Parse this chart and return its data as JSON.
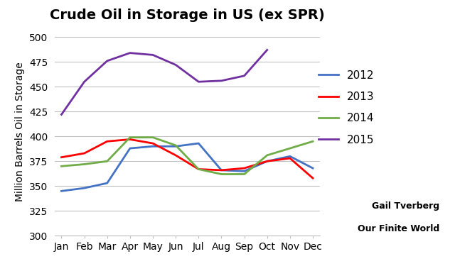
{
  "title": "Crude Oil in Storage in US (ex SPR)",
  "ylabel": "Million Barrels Oil in Storage",
  "months": [
    "Jan",
    "Feb",
    "Mar",
    "Apr",
    "May",
    "Jun",
    "Jul",
    "Aug",
    "Sep",
    "Oct",
    "Nov",
    "Dec"
  ],
  "series_order": [
    "2012",
    "2013",
    "2014",
    "2015"
  ],
  "series": {
    "2012": [
      345,
      348,
      353,
      388,
      390,
      390,
      393,
      366,
      365,
      375,
      380,
      368
    ],
    "2013": [
      379,
      383,
      395,
      397,
      393,
      381,
      367,
      366,
      368,
      375,
      378,
      358
    ],
    "2014": [
      370,
      372,
      375,
      399,
      399,
      391,
      367,
      362,
      362,
      381,
      388,
      395
    ],
    "2015": [
      422,
      455,
      476,
      484,
      482,
      472,
      455,
      456,
      461,
      487,
      null,
      null
    ]
  },
  "colors": {
    "2012": "#4472C4",
    "2013": "#FF0000",
    "2014": "#70AD47",
    "2015": "#7030A0"
  },
  "ylim": [
    300,
    510
  ],
  "yticks": [
    300,
    325,
    350,
    375,
    400,
    425,
    450,
    475,
    500
  ],
  "attribution_line1": "Gail Tverberg",
  "attribution_line2": "Our Finite World",
  "background_color": "#FFFFFF",
  "grid_color": "#C0C0C0",
  "line_width": 2.0,
  "title_fontsize": 14,
  "tick_fontsize": 10,
  "ylabel_fontsize": 10,
  "legend_fontsize": 11
}
